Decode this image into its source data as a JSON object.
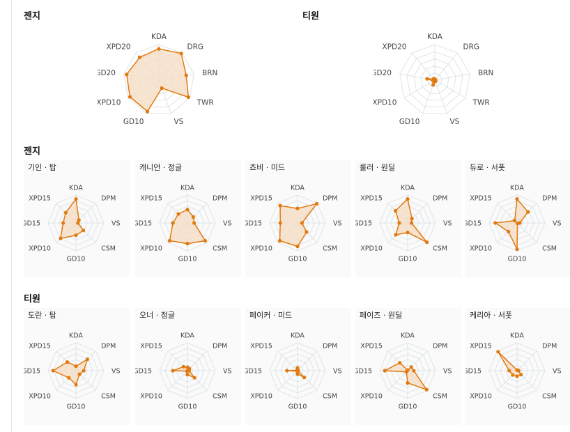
{
  "sections": {
    "team_title_left": "젠지",
    "team_title_right": "티원",
    "players_title_top": "젠지",
    "players_title_bottom": "티원"
  },
  "colors": {
    "accent": "#e07a10",
    "fill": "#f6dcc2",
    "grid": "#dfe4e8",
    "label": "#444444"
  },
  "team_axes": [
    "KDA",
    "DRG",
    "BRN",
    "TWR",
    "VS",
    "GD10",
    "XPD10",
    "GD20",
    "XPD20"
  ],
  "player_axes": [
    "KDA",
    "DPM",
    "VS",
    "CSM",
    "GD10",
    "XPD10",
    "GD15",
    "XPD15"
  ],
  "chart_data": [
    {
      "type": "radar",
      "group": "team",
      "title": "젠지",
      "axes": [
        "KDA",
        "DRG",
        "BRN",
        "TWR",
        "VS",
        "GD10",
        "XPD10",
        "GD20",
        "XPD20"
      ],
      "values": [
        0.88,
        0.98,
        0.78,
        0.96,
        0.24,
        0.94,
        0.94,
        0.92,
        0.84
      ]
    },
    {
      "type": "radar",
      "group": "team",
      "title": "티원",
      "axes": [
        "KDA",
        "DRG",
        "BRN",
        "TWR",
        "VS",
        "GD10",
        "XPD10",
        "GD20",
        "XPD20"
      ],
      "values": [
        0.03,
        0.02,
        0.02,
        0.03,
        0.04,
        0.14,
        0.05,
        0.22,
        0.05
      ]
    },
    {
      "type": "radar",
      "group": "gen",
      "title": "기인 · 탑",
      "axes": [
        "KDA",
        "DPM",
        "VS",
        "CSM",
        "GD10",
        "XPD10",
        "GD15",
        "XPD15"
      ],
      "values": [
        0.86,
        0.15,
        0.07,
        0.38,
        0.44,
        0.78,
        0.46,
        0.52
      ]
    },
    {
      "type": "radar",
      "group": "gen",
      "title": "캐니언 · 정글",
      "axes": [
        "KDA",
        "DPM",
        "VS",
        "CSM",
        "GD10",
        "XPD10",
        "GD15",
        "XPD15"
      ],
      "values": [
        0.48,
        0.3,
        0.24,
        0.9,
        0.74,
        0.9,
        0.52,
        0.46
      ]
    },
    {
      "type": "radar",
      "group": "cho",
      "title": "쵸비 · 미드",
      "axes": [
        "KDA",
        "DPM",
        "VS",
        "CSM",
        "GD10",
        "XPD10",
        "GD15",
        "XPD15"
      ],
      "values": [
        0.52,
        0.98,
        0.16,
        0.46,
        0.84,
        0.9,
        0.62,
        0.88
      ]
    },
    {
      "type": "radar",
      "group": "gen",
      "title": "룰러 · 원딜",
      "axes": [
        "KDA",
        "DPM",
        "VS",
        "CSM",
        "GD10",
        "XPD10",
        "GD15",
        "XPD15"
      ],
      "values": [
        0.86,
        0.22,
        0.14,
        0.98,
        0.34,
        0.6,
        0.3,
        0.62
      ]
    },
    {
      "type": "radar",
      "group": "gen",
      "title": "듀로 · 서폿",
      "axes": [
        "KDA",
        "DPM",
        "VS",
        "CSM",
        "GD10",
        "XPD10",
        "GD15",
        "XPD15"
      ],
      "values": [
        0.86,
        0.56,
        0.1,
        0.02,
        0.94,
        0.44,
        0.78,
        0.12
      ]
    },
    {
      "type": "radar",
      "group": "t1",
      "title": "도란 · 탑",
      "axes": [
        "KDA",
        "DPM",
        "VS",
        "CSM",
        "GD10",
        "XPD10",
        "GD15",
        "XPD15"
      ],
      "values": [
        0.16,
        0.58,
        0.28,
        0.18,
        0.5,
        0.36,
        0.82,
        0.44
      ]
    },
    {
      "type": "radar",
      "group": "t1",
      "title": "오너 · 정글",
      "axes": [
        "KDA",
        "DPM",
        "VS",
        "CSM",
        "GD10",
        "XPD10",
        "GD15",
        "XPD15"
      ],
      "values": [
        0.12,
        0.1,
        0.06,
        0.36,
        0.14,
        0.02,
        0.52,
        0.2
      ]
    },
    {
      "type": "radar",
      "group": "t1",
      "title": "페이커 · 미드",
      "axes": [
        "KDA",
        "DPM",
        "VS",
        "CSM",
        "GD10",
        "XPD10",
        "GD15",
        "XPD15"
      ],
      "values": [
        0.1,
        0.02,
        0.02,
        0.34,
        0.12,
        0.02,
        0.38,
        0.02
      ]
    },
    {
      "type": "radar",
      "group": "t1",
      "title": "페이즈 · 원딜",
      "axes": [
        "KDA",
        "DPM",
        "VS",
        "CSM",
        "GD10",
        "XPD10",
        "GD15",
        "XPD15"
      ],
      "values": [
        0.02,
        0.18,
        0.22,
        0.96,
        0.44,
        0.06,
        0.82,
        0.4
      ]
    },
    {
      "type": "radar",
      "group": "t1",
      "title": "케리아 · 서폿",
      "axes": [
        "KDA",
        "DPM",
        "VS",
        "CSM",
        "GD10",
        "XPD10",
        "GD15",
        "XPD15"
      ],
      "values": [
        0.02,
        0.02,
        0.06,
        0.2,
        0.2,
        0.22,
        0.28,
        0.96
      ]
    }
  ]
}
